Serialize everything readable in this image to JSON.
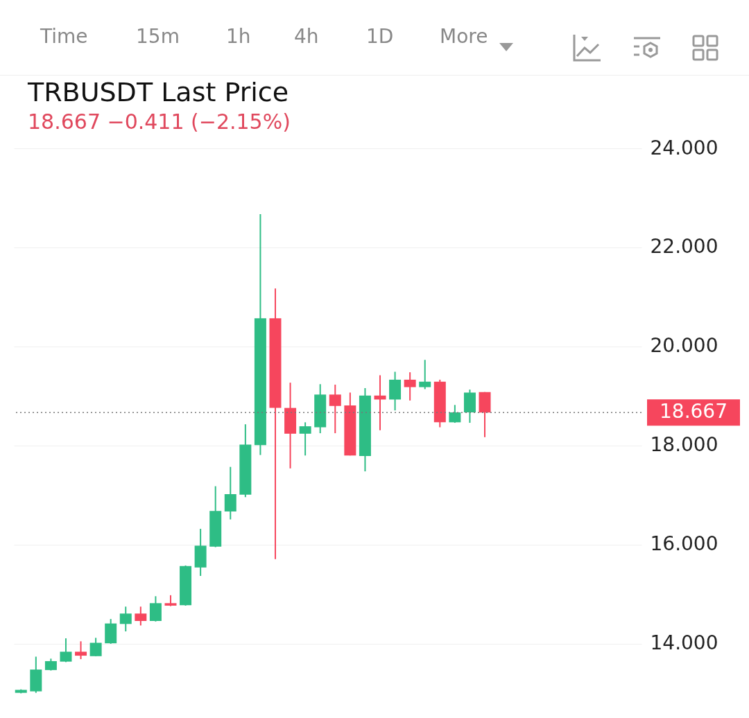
{
  "chart_data": {
    "type": "candlestick",
    "title": "TRBUSDT Last Price",
    "subtitle": "18.667  −0.411 (−2.15%)",
    "annotations": [
      "Time",
      "15m",
      "1h",
      "4h",
      "1D",
      "More"
    ],
    "categories": [
      null,
      null,
      null,
      null,
      null,
      null,
      null,
      null,
      null,
      null,
      null,
      null,
      null,
      null,
      null,
      null,
      null,
      null,
      null,
      null,
      null,
      null,
      null,
      null,
      null,
      null,
      null,
      null,
      null,
      null,
      null,
      null,
      null,
      null,
      null,
      null,
      null,
      null,
      null,
      null,
      null,
      null
    ],
    "ohlc": [
      [
        13.01,
        13.08,
        13.0,
        13.07
      ],
      [
        13.04,
        13.74,
        13.01,
        13.48
      ],
      [
        13.47,
        13.7,
        13.46,
        13.65
      ],
      [
        13.64,
        14.11,
        13.63,
        13.84
      ],
      [
        13.84,
        14.05,
        13.69,
        13.76
      ],
      [
        13.75,
        14.12,
        13.75,
        14.02
      ],
      [
        14.01,
        14.5,
        14.0,
        14.41
      ],
      [
        14.4,
        14.75,
        14.25,
        14.61
      ],
      [
        14.61,
        14.75,
        14.37,
        14.46
      ],
      [
        14.46,
        14.96,
        14.45,
        14.82
      ],
      [
        14.82,
        14.98,
        14.76,
        14.77
      ],
      [
        14.78,
        15.58,
        14.77,
        15.57
      ],
      [
        15.54,
        16.32,
        15.37,
        15.98
      ],
      [
        15.96,
        17.18,
        15.95,
        16.68
      ],
      [
        16.67,
        17.57,
        16.51,
        17.02
      ],
      [
        17.01,
        18.43,
        16.96,
        18.02
      ],
      [
        18.01,
        22.67,
        17.81,
        20.57
      ],
      [
        20.57,
        21.17,
        15.71,
        18.76
      ],
      [
        18.76,
        19.27,
        17.54,
        18.24
      ],
      [
        18.24,
        18.47,
        17.8,
        18.39
      ],
      [
        18.37,
        19.24,
        18.25,
        19.03
      ],
      [
        19.03,
        19.23,
        18.25,
        18.8
      ],
      [
        18.81,
        19.07,
        17.8,
        17.8
      ],
      [
        17.79,
        19.16,
        17.48,
        19.01
      ],
      [
        19.01,
        19.42,
        18.31,
        18.93
      ],
      [
        18.93,
        19.49,
        18.71,
        19.33
      ],
      [
        19.33,
        19.48,
        18.91,
        19.18
      ],
      [
        19.18,
        19.73,
        19.14,
        19.29
      ],
      [
        19.29,
        19.33,
        18.37,
        18.47
      ],
      [
        18.47,
        18.82,
        18.46,
        18.67
      ],
      [
        18.67,
        19.13,
        18.46,
        19.07
      ],
      [
        19.08,
        19.08,
        18.17,
        18.667
      ],
      null,
      null,
      null,
      null,
      null,
      null,
      null,
      null,
      null,
      null
    ],
    "colors": [
      "#2ebd85",
      "#2ebd85",
      "#2ebd85",
      "#2ebd85",
      "#f6465d",
      "#2ebd85",
      "#2ebd85",
      "#2ebd85",
      "#f6465d",
      "#2ebd85",
      "#f6465d",
      "#2ebd85",
      "#2ebd85",
      "#2ebd85",
      "#2ebd85",
      "#2ebd85",
      "#2ebd85",
      "#f6465d",
      "#f6465d",
      "#2ebd85",
      "#2ebd85",
      "#f6465d",
      "#f6465d",
      "#2ebd85",
      "#f6465d",
      "#2ebd85",
      "#f6465d",
      "#2ebd85",
      "#f6465d",
      "#2ebd85",
      "#2ebd85",
      "#f6465d",
      null,
      null,
      null,
      null,
      null,
      null,
      null,
      null,
      null,
      null
    ],
    "ylim": [
      12.6,
      24
    ],
    "yticks": [
      {
        "value": 14,
        "label": "14.000"
      },
      {
        "value": 16,
        "label": "16.000"
      },
      {
        "value": 18,
        "label": "18.000"
      },
      {
        "value": 20,
        "label": "20.000"
      },
      {
        "value": 22,
        "label": "22.000"
      },
      {
        "value": 24,
        "label": "24.000"
      }
    ],
    "grid": "y",
    "tick_labels": "y",
    "ref_lines": [
      {
        "axis": "y",
        "value": 18.667,
        "label": "18.667",
        "line_style": "dotted"
      }
    ]
  }
}
